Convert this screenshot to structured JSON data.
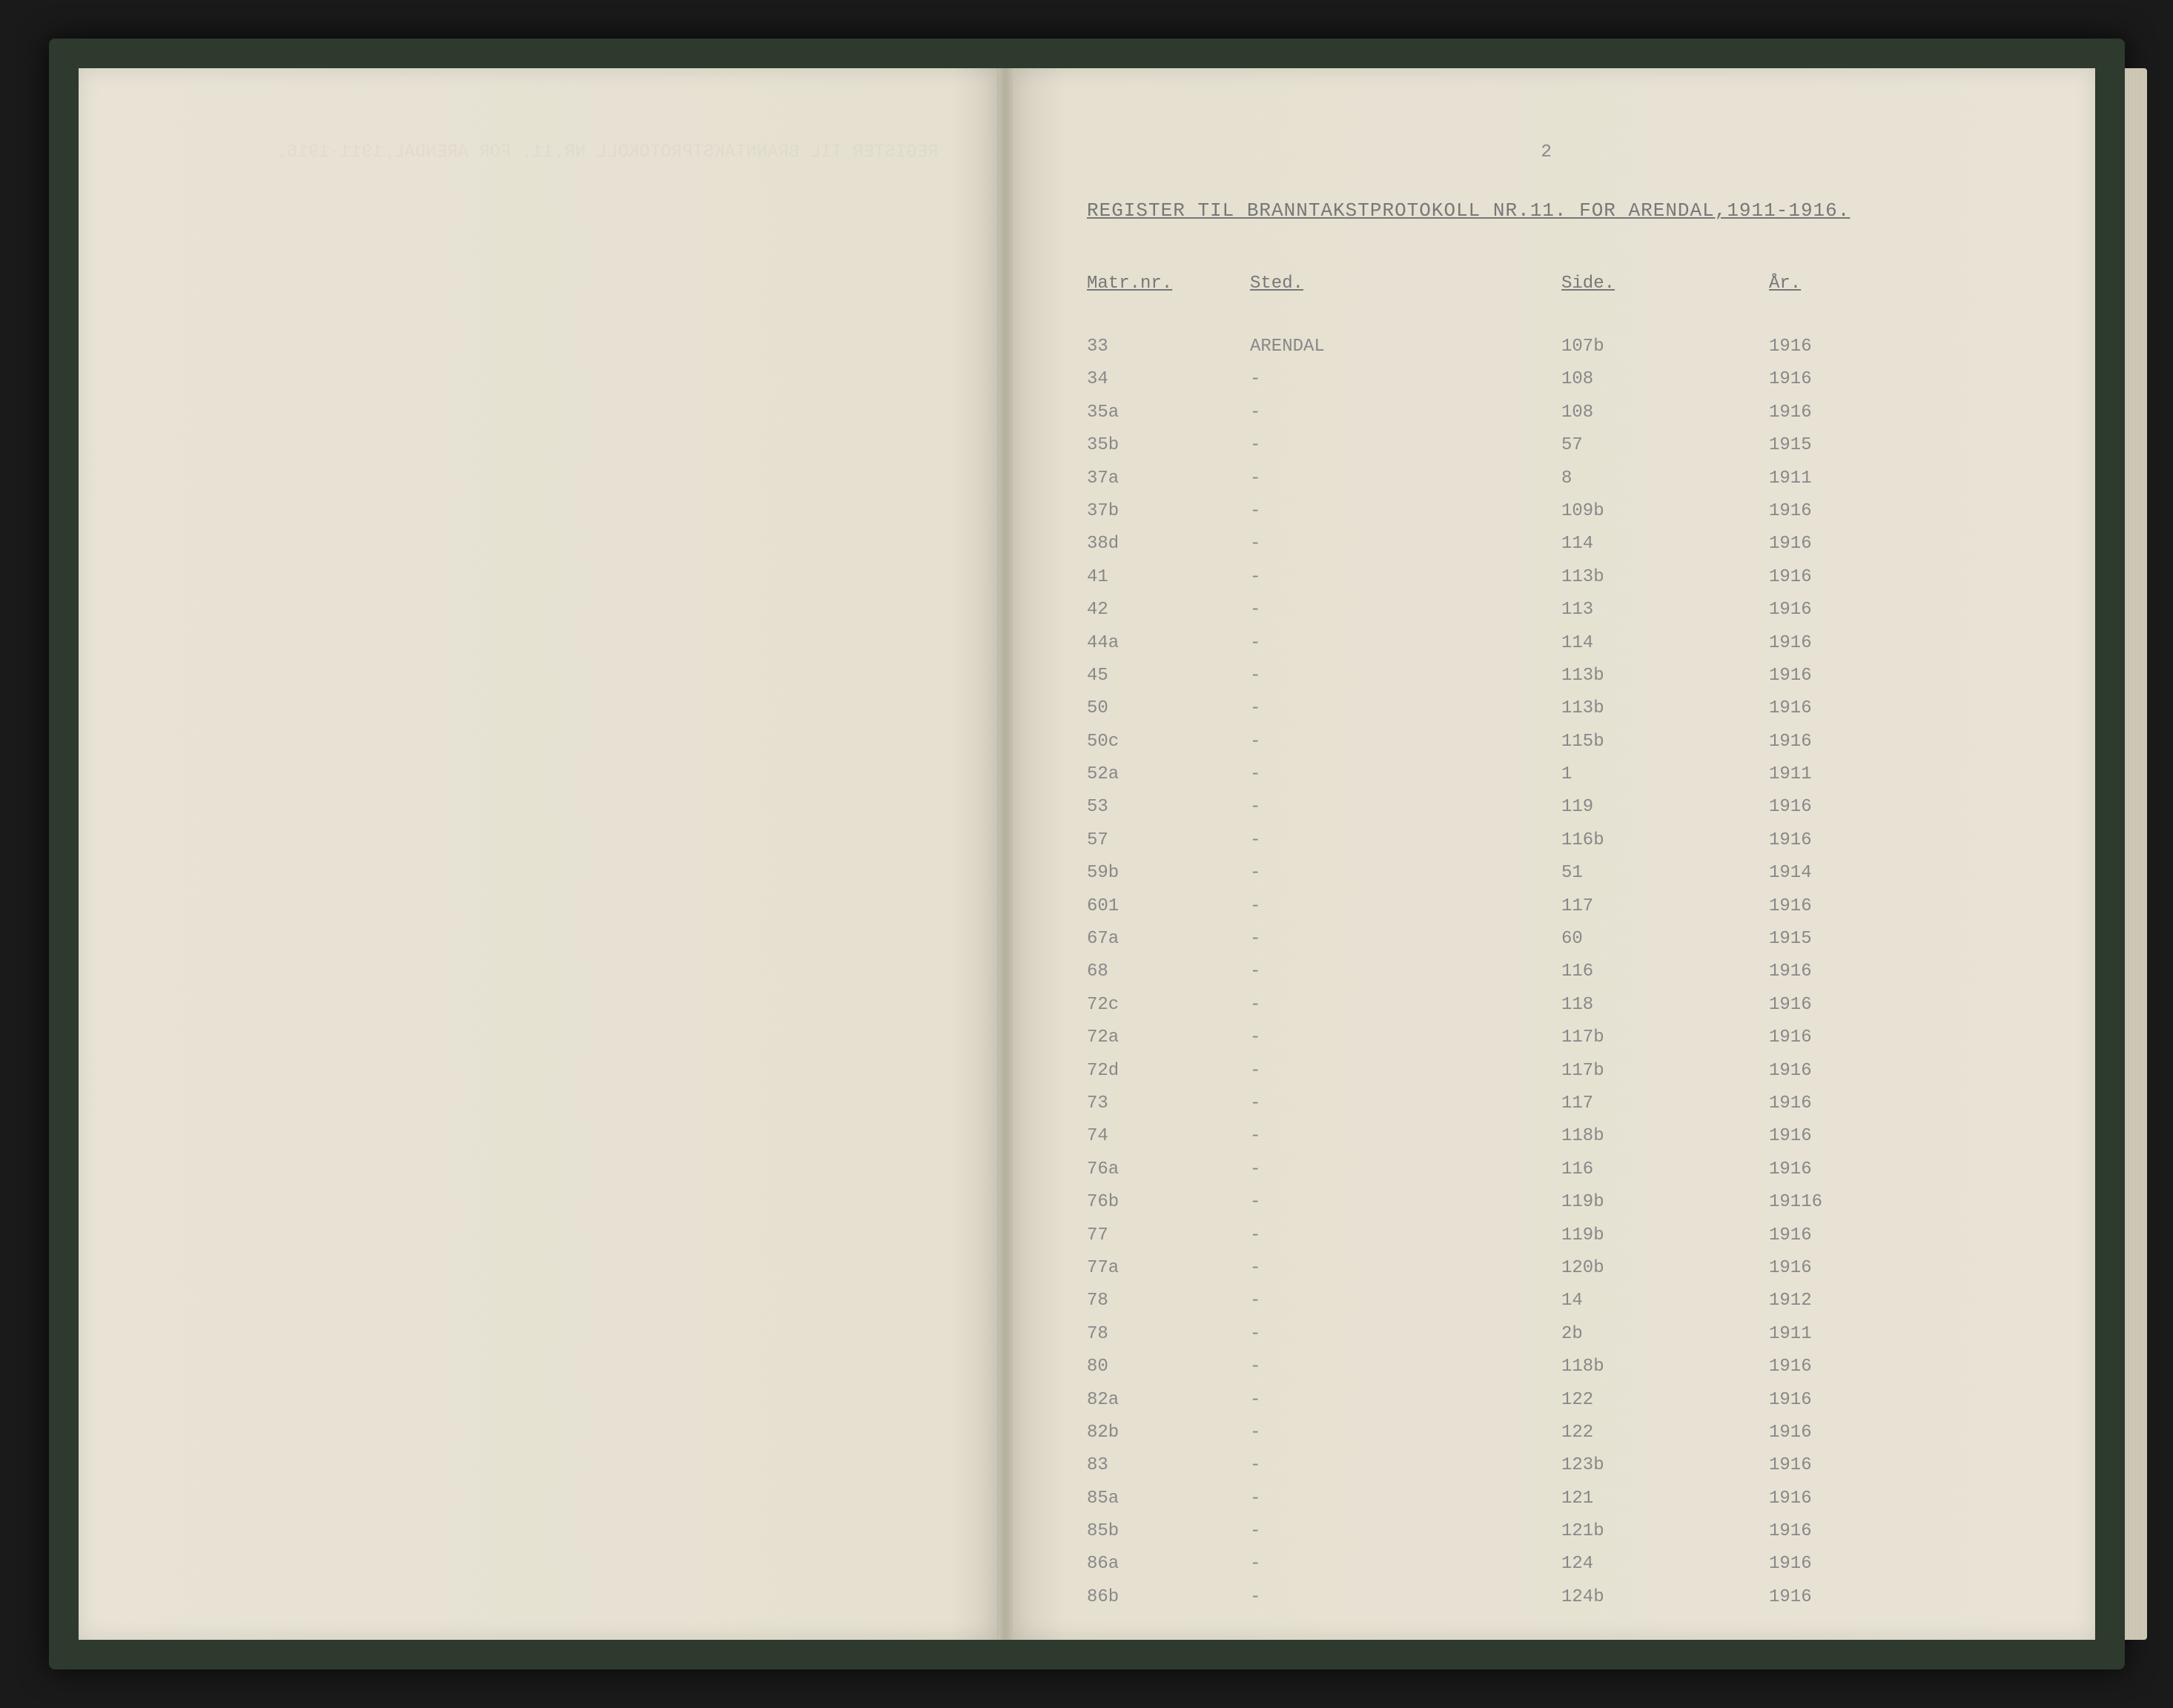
{
  "page_number": "2",
  "title": "REGISTER TIL BRANNTAKSTPROTOKOLL NR.11. FOR ARENDAL,1911-1916.",
  "columns": {
    "matr": "Matr.nr.",
    "sted": "Sted.",
    "side": "Side.",
    "ar": "År."
  },
  "location_name": "ARENDAL",
  "ditto_mark": "-",
  "rows": [
    {
      "matr": "33",
      "sted": "ARENDAL",
      "side": "107b",
      "ar": "1916"
    },
    {
      "matr": "34",
      "sted": "-",
      "side": "108",
      "ar": "1916"
    },
    {
      "matr": "35a",
      "sted": "-",
      "side": "108",
      "ar": "1916"
    },
    {
      "matr": "35b",
      "sted": "-",
      "side": "57",
      "ar": "1915"
    },
    {
      "matr": "37a",
      "sted": "-",
      "side": "8",
      "ar": "1911"
    },
    {
      "matr": "37b",
      "sted": "-",
      "side": "109b",
      "ar": "1916"
    },
    {
      "matr": "38d",
      "sted": "-",
      "side": "114",
      "ar": "1916"
    },
    {
      "matr": "41",
      "sted": "-",
      "side": "113b",
      "ar": "1916"
    },
    {
      "matr": "42",
      "sted": "-",
      "side": "113",
      "ar": "1916"
    },
    {
      "matr": "44a",
      "sted": "-",
      "side": "114",
      "ar": "1916"
    },
    {
      "matr": "45",
      "sted": "-",
      "side": "113b",
      "ar": "1916"
    },
    {
      "matr": "50",
      "sted": "-",
      "side": "113b",
      "ar": "1916"
    },
    {
      "matr": "50c",
      "sted": "-",
      "side": "115b",
      "ar": "1916"
    },
    {
      "matr": "52a",
      "sted": "-",
      "side": "1",
      "ar": "1911"
    },
    {
      "matr": "53",
      "sted": "-",
      "side": "119",
      "ar": "1916"
    },
    {
      "matr": "57",
      "sted": "-",
      "side": "116b",
      "ar": "1916"
    },
    {
      "matr": "59b",
      "sted": "-",
      "side": "51",
      "ar": "1914"
    },
    {
      "matr": "601",
      "sted": "-",
      "side": "117",
      "ar": "1916"
    },
    {
      "matr": "67a",
      "sted": "-",
      "side": "60",
      "ar": "1915"
    },
    {
      "matr": "68",
      "sted": "-",
      "side": "116",
      "ar": "1916"
    },
    {
      "matr": "72c",
      "sted": "-",
      "side": "118",
      "ar": "1916"
    },
    {
      "matr": "72a",
      "sted": "-",
      "side": "117b",
      "ar": "1916"
    },
    {
      "matr": "72d",
      "sted": "-",
      "side": "117b",
      "ar": "1916"
    },
    {
      "matr": "73",
      "sted": "-",
      "side": "117",
      "ar": "1916"
    },
    {
      "matr": "74",
      "sted": "-",
      "side": "118b",
      "ar": "1916"
    },
    {
      "matr": "76a",
      "sted": "-",
      "side": "116",
      "ar": "1916"
    },
    {
      "matr": "76b",
      "sted": "-",
      "side": "119b",
      "ar": "19116"
    },
    {
      "matr": "77",
      "sted": "-",
      "side": "119b",
      "ar": "1916"
    },
    {
      "matr": "77a",
      "sted": "-",
      "side": "120b",
      "ar": "1916"
    },
    {
      "matr": "78",
      "sted": "-",
      "side": "14",
      "ar": "1912"
    },
    {
      "matr": "78",
      "sted": "-",
      "side": "2b",
      "ar": "1911"
    },
    {
      "matr": "80",
      "sted": "-",
      "side": "118b",
      "ar": "1916"
    },
    {
      "matr": "82a",
      "sted": "-",
      "side": "122",
      "ar": "1916"
    },
    {
      "matr": "82b",
      "sted": "-",
      "side": "122",
      "ar": "1916"
    },
    {
      "matr": "83",
      "sted": "-",
      "side": "123b",
      "ar": "1916"
    },
    {
      "matr": "85a",
      "sted": "-",
      "side": "121",
      "ar": "1916"
    },
    {
      "matr": "85b",
      "sted": "-",
      "side": "121b",
      "ar": "1916"
    },
    {
      "matr": "86a",
      "sted": "-",
      "side": "124",
      "ar": "1916"
    },
    {
      "matr": "86b",
      "sted": "-",
      "side": "124b",
      "ar": "1916"
    }
  ],
  "colors": {
    "background": "#1a1a1a",
    "cover": "#2d3a2d",
    "paper": "#e8e3d5",
    "text": "#888888",
    "title_text": "#777777"
  }
}
